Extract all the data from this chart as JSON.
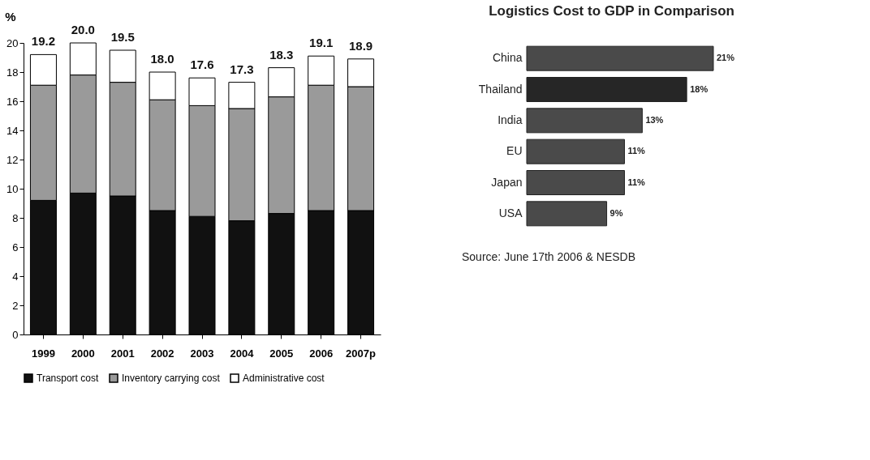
{
  "chart_data": [
    {
      "type": "bar",
      "stacked": true,
      "ylabel": "%",
      "categories": [
        "1999",
        "2000",
        "2001",
        "2002",
        "2003",
        "2004",
        "2005",
        "2006",
        "2007p"
      ],
      "series": [
        {
          "name": "Transport cost",
          "color": "#111111",
          "values": [
            9.2,
            9.7,
            9.5,
            8.5,
            8.1,
            7.8,
            8.3,
            8.5,
            8.5
          ]
        },
        {
          "name": "Inventory carrying cost",
          "color": "#9a9a9a",
          "values": [
            7.9,
            8.1,
            7.8,
            7.6,
            7.6,
            7.7,
            8.0,
            8.6,
            8.5
          ]
        },
        {
          "name": "Administrative cost",
          "color": "#ffffff",
          "values": [
            2.1,
            2.2,
            2.2,
            1.9,
            1.9,
            1.8,
            2.0,
            2.0,
            1.9
          ]
        }
      ],
      "totals": [
        "19.2",
        "20.0",
        "19.5",
        "18.0",
        "17.6",
        "17.3",
        "18.3",
        "19.1",
        "18.9"
      ],
      "ylim": [
        0,
        20
      ],
      "yticks": [
        0,
        2,
        4,
        6,
        8,
        10,
        12,
        14,
        16,
        18,
        20
      ],
      "grid": false,
      "legend": "bottom"
    },
    {
      "type": "bar",
      "orientation": "horizontal",
      "title": "Logistics Cost to GDP in Comparison",
      "categories": [
        "China",
        "Thailand",
        "India",
        "EU",
        "Japan",
        "USA"
      ],
      "values": [
        21,
        18,
        13,
        11,
        11,
        9
      ],
      "value_labels": [
        "21%",
        "18%",
        "13%",
        "11%",
        "11%",
        "9%"
      ],
      "colors": [
        "#4a4a4a",
        "#262626",
        "#4a4a4a",
        "#4a4a4a",
        "#4a4a4a",
        "#4a4a4a"
      ],
      "annotations": [
        "Source: June 17th 2006 & NESDB"
      ]
    }
  ]
}
